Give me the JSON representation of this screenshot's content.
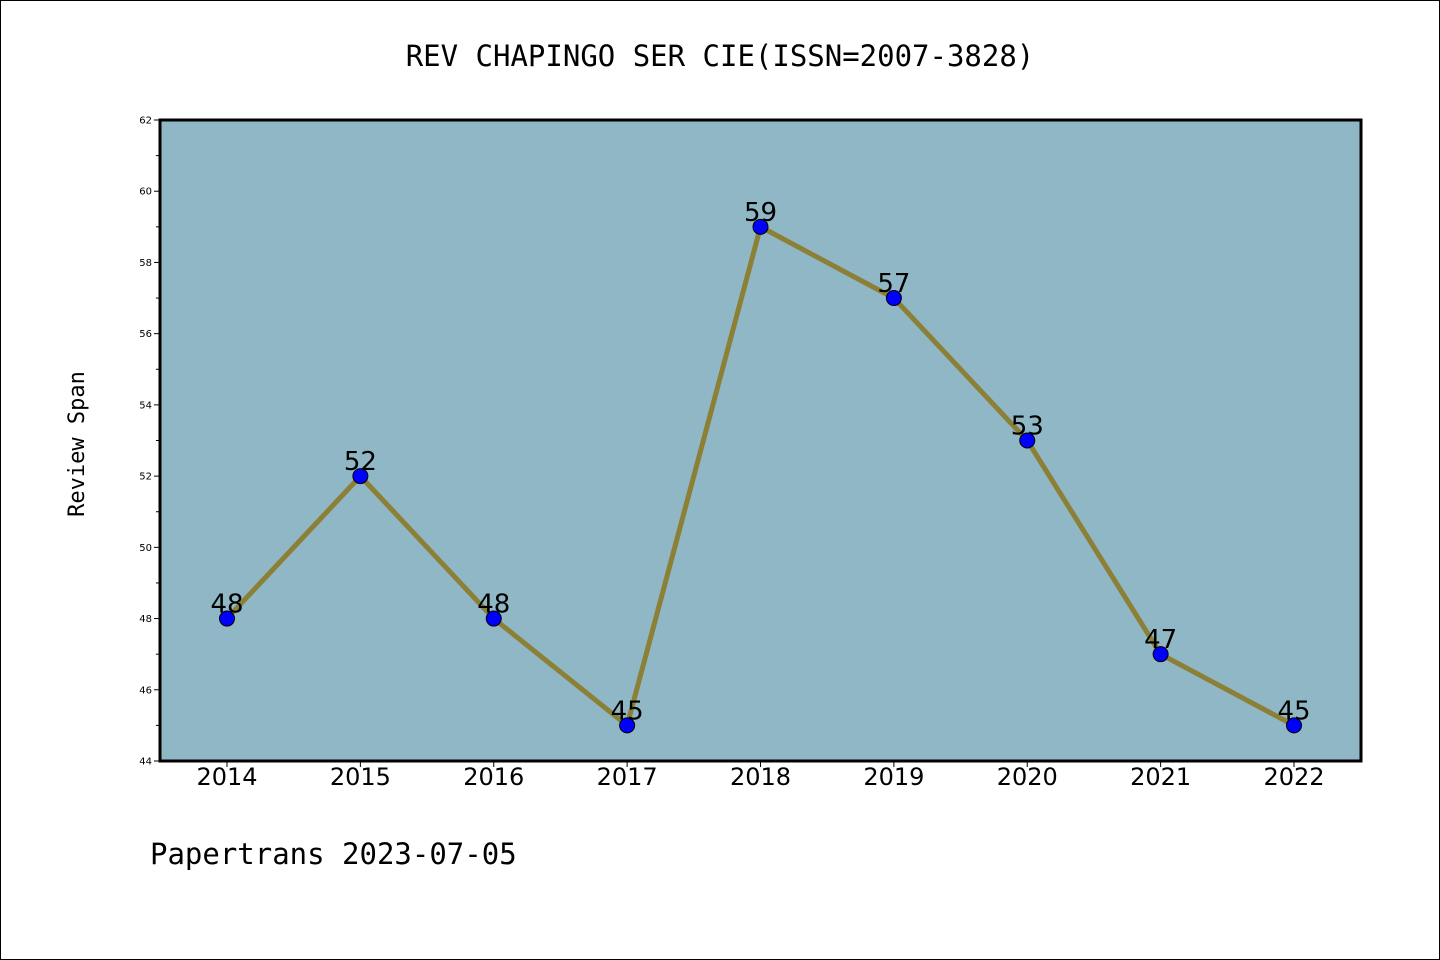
{
  "chart_data": {
    "type": "line",
    "title": "REV CHAPINGO SER CIE(ISSN=2007-3828)",
    "ylabel": "Review Span",
    "xlabel": "",
    "categories": [
      "2014",
      "2015",
      "2016",
      "2017",
      "2018",
      "2019",
      "2020",
      "2021",
      "2022"
    ],
    "series": [
      {
        "values": [
          48,
          52,
          48,
          45,
          59,
          57,
          53,
          47,
          45
        ]
      }
    ],
    "ylim": [
      44,
      62
    ],
    "yticks": [
      44,
      46,
      48,
      50,
      52,
      54,
      56,
      58,
      60,
      62
    ],
    "grid": false,
    "data_labels": true,
    "colors": {
      "plot_background": "#8fb7c5",
      "line": "#8b8035",
      "marker": "#0000ff"
    }
  },
  "footer": {
    "text": "Papertrans 2023-07-05"
  }
}
